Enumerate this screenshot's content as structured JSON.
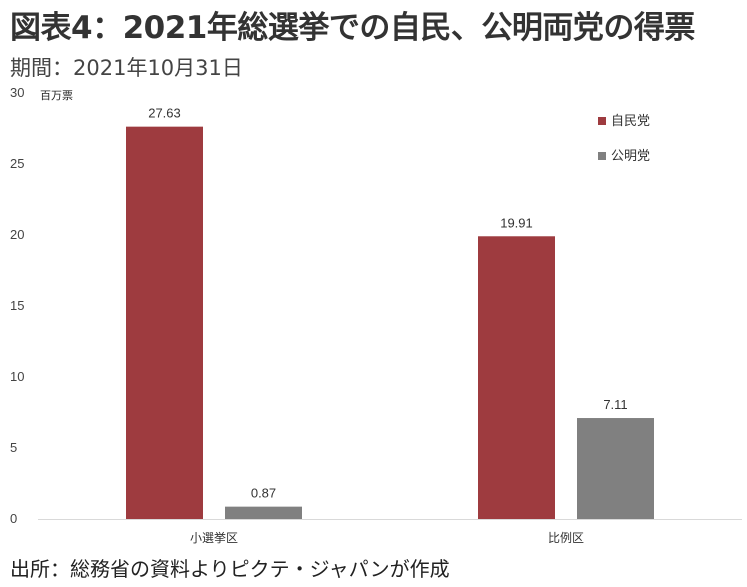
{
  "header": {
    "title": "図表4：2021年総選挙での自民、公明両党の得票",
    "period": "期間：2021年10月31日"
  },
  "footer": {
    "source": "出所：総務省の資料よりピクテ・ジャパンが作成"
  },
  "chart_data": {
    "type": "bar",
    "title": "",
    "ylabel": "百万票",
    "xlabel": "",
    "categories": [
      "小選挙区",
      "比例区"
    ],
    "series": [
      {
        "name": "自民党",
        "color": "#9e3b3f",
        "values": [
          27.63,
          19.91
        ]
      },
      {
        "name": "公明党",
        "color": "#808080",
        "values": [
          0.87,
          7.11
        ]
      }
    ],
    "ylim": [
      0,
      30
    ],
    "yticks": [
      0,
      5,
      10,
      15,
      20,
      25,
      30
    ],
    "grid": false,
    "legend": "top-right",
    "data_labels": true
  }
}
